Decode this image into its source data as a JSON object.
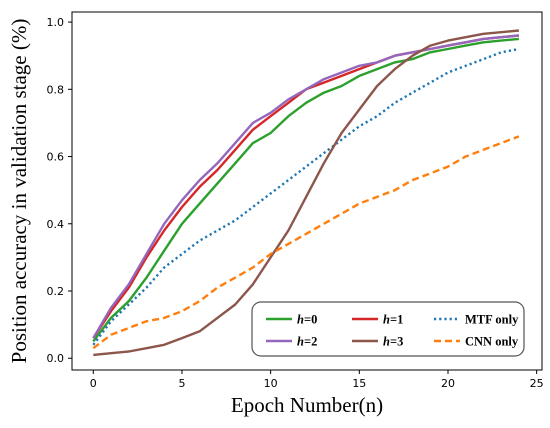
{
  "chart_data": {
    "type": "line",
    "title": "",
    "xlabel": "Epoch Number(n)",
    "ylabel": "Position accuracy in validation stage (%)",
    "xlim": [
      -1.2,
      25.3
    ],
    "ylim": [
      -0.035,
      1.03
    ],
    "xticks": [
      0,
      5,
      10,
      15,
      20,
      25
    ],
    "yticks": [
      0.0,
      0.2,
      0.4,
      0.6,
      0.8,
      1.0
    ],
    "xtick_labels": [
      "0",
      "5",
      "10",
      "15",
      "20",
      "25"
    ],
    "ytick_labels": [
      "0.0",
      "0.2",
      "0.4",
      "0.6",
      "0.8",
      "1.0"
    ],
    "grid": false,
    "legend": {
      "placement": "lower-right",
      "columns": 3
    },
    "x": [
      0,
      1,
      2,
      3,
      4,
      5,
      6,
      7,
      8,
      9,
      10,
      11,
      12,
      13,
      14,
      15,
      16,
      17,
      18,
      19,
      20,
      21,
      22,
      23,
      24
    ],
    "series": [
      {
        "name": "h=0",
        "legend_main": "h",
        "legend_rest": "=0",
        "color": "#2ca02c",
        "dash": "solid",
        "values": [
          0.05,
          0.12,
          0.17,
          0.24,
          0.32,
          0.4,
          0.46,
          0.52,
          0.58,
          0.64,
          0.67,
          0.72,
          0.76,
          0.79,
          0.81,
          0.84,
          0.86,
          0.88,
          0.89,
          0.91,
          0.92,
          0.93,
          0.94,
          0.945,
          0.95
        ]
      },
      {
        "name": "h=1",
        "legend_main": "h",
        "legend_rest": "=1",
        "color": "#d62728",
        "dash": "solid",
        "values": [
          0.06,
          0.14,
          0.21,
          0.3,
          0.38,
          0.45,
          0.51,
          0.56,
          0.62,
          0.68,
          0.72,
          0.76,
          0.8,
          0.82,
          0.84,
          0.86,
          0.88,
          0.9,
          0.91,
          0.92,
          0.93,
          0.94,
          0.95,
          0.955,
          0.96
        ]
      },
      {
        "name": "MTF only",
        "legend_main": "MTF only",
        "legend_rest": "",
        "color": "#1f77b4",
        "dash": "dotted",
        "values": [
          0.04,
          0.11,
          0.16,
          0.21,
          0.27,
          0.31,
          0.35,
          0.38,
          0.41,
          0.45,
          0.49,
          0.53,
          0.57,
          0.61,
          0.65,
          0.69,
          0.72,
          0.76,
          0.79,
          0.82,
          0.85,
          0.87,
          0.89,
          0.91,
          0.92
        ]
      },
      {
        "name": "h=2",
        "legend_main": "h",
        "legend_rest": "=2",
        "color": "#9467bd",
        "dash": "solid",
        "values": [
          0.06,
          0.15,
          0.22,
          0.31,
          0.4,
          0.47,
          0.53,
          0.58,
          0.64,
          0.7,
          0.73,
          0.77,
          0.8,
          0.83,
          0.85,
          0.87,
          0.88,
          0.9,
          0.91,
          0.92,
          0.93,
          0.94,
          0.95,
          0.955,
          0.96
        ]
      },
      {
        "name": "h=3",
        "legend_main": "h",
        "legend_rest": "=3",
        "color": "#8c564b",
        "dash": "solid",
        "values": [
          0.01,
          0.015,
          0.02,
          0.03,
          0.04,
          0.06,
          0.08,
          0.12,
          0.16,
          0.22,
          0.3,
          0.38,
          0.48,
          0.58,
          0.67,
          0.74,
          0.81,
          0.86,
          0.9,
          0.93,
          0.945,
          0.955,
          0.965,
          0.97,
          0.975
        ]
      },
      {
        "name": "CNN only",
        "legend_main": "CNN only",
        "legend_rest": "",
        "color": "#ff7f0e",
        "dash": "dashed",
        "values": [
          0.03,
          0.07,
          0.09,
          0.11,
          0.12,
          0.14,
          0.17,
          0.21,
          0.24,
          0.27,
          0.31,
          0.34,
          0.37,
          0.4,
          0.43,
          0.46,
          0.48,
          0.5,
          0.53,
          0.55,
          0.57,
          0.6,
          0.62,
          0.64,
          0.66
        ]
      }
    ]
  }
}
